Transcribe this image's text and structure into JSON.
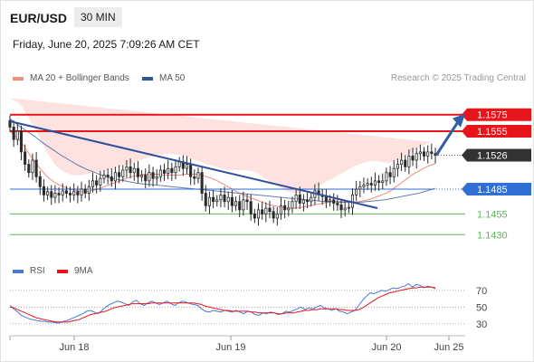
{
  "header": {
    "symbol": "EUR/USD",
    "interval": "30 MIN",
    "datetime": "Friday, June 20, 2025 7:09:26 AM CET"
  },
  "legend": {
    "ma20_bb_label": "MA 20 + Bollinger Bands",
    "ma50_label": "MA 50",
    "copyright": "Research © 2025 Trading Central"
  },
  "rsi_legend": {
    "rsi_label": "RSI",
    "ma9_label": "9MA"
  },
  "colors": {
    "ma20": "#f28b82",
    "bollinger_fill": "#fde2e0",
    "ma50": "#2f5597",
    "resistance": "#e8141b",
    "support": "#2f6fd6",
    "target_support": "#5cb85c",
    "current_price": "#333333",
    "candle": "#2b2b2b",
    "trendline": "#2f4f9a",
    "arrow": "#2f5fa7",
    "rsi": "#4a78d4",
    "rsi_ma": "#e8141b"
  },
  "chart_data": [
    {
      "type": "candlestick",
      "title": "",
      "xlabel": "",
      "ylabel": "",
      "x_ticks": [
        "Jun 18",
        "Jun 19",
        "Jun 20",
        "Jun 25"
      ],
      "ylim": [
        1.1415,
        1.159
      ],
      "price_levels": [
        {
          "label": "1.1575",
          "value": 1.1575,
          "kind": "resistance"
        },
        {
          "label": "1.1555",
          "value": 1.1555,
          "kind": "resistance"
        },
        {
          "label": "1.1526",
          "value": 1.1526,
          "kind": "current"
        },
        {
          "label": "1.1485",
          "value": 1.1485,
          "kind": "pivot"
        },
        {
          "label": "1.1455",
          "value": 1.1455,
          "kind": "support"
        },
        {
          "label": "1.1430",
          "value": 1.143,
          "kind": "support"
        }
      ],
      "close_series": [
        1.156,
        1.1545,
        1.1555,
        1.153,
        1.1515,
        1.1505,
        1.152,
        1.15,
        1.1488,
        1.1478,
        1.1482,
        1.1475,
        1.148,
        1.1478,
        1.1483,
        1.148,
        1.1478,
        1.1482,
        1.1478,
        1.1485,
        1.148,
        1.1488,
        1.1495,
        1.149,
        1.1498,
        1.1502,
        1.15,
        1.1495,
        1.1505,
        1.15,
        1.1508,
        1.1512,
        1.1505,
        1.151,
        1.15,
        1.1502,
        1.1495,
        1.1505,
        1.1498,
        1.15,
        1.1508,
        1.1504,
        1.151,
        1.1505,
        1.1512,
        1.1518,
        1.151,
        1.1515,
        1.15,
        1.1498,
        1.1505,
        1.148,
        1.1465,
        1.1475,
        1.147,
        1.1472,
        1.1478,
        1.147,
        1.1475,
        1.1465,
        1.147,
        1.146,
        1.1472,
        1.147,
        1.1455,
        1.145,
        1.146,
        1.1455,
        1.1462,
        1.1458,
        1.145,
        1.1455,
        1.1465,
        1.146,
        1.1462,
        1.147,
        1.1478,
        1.1468,
        1.1472,
        1.147,
        1.1475,
        1.1483,
        1.1478,
        1.1476,
        1.147,
        1.1472,
        1.1468,
        1.1466,
        1.146,
        1.1462,
        1.1463,
        1.1478,
        1.1485,
        1.1488,
        1.149,
        1.1492,
        1.149,
        1.1495,
        1.1493,
        1.1495,
        1.1505,
        1.15,
        1.151,
        1.1515,
        1.152,
        1.1512,
        1.1525,
        1.152,
        1.1528,
        1.153,
        1.1525,
        1.153,
        1.1528,
        1.1526
      ],
      "ma20_series": [
        1.1555,
        1.155,
        1.1545,
        1.1538,
        1.153,
        1.1522,
        1.1515,
        1.1508,
        1.1502,
        1.1497,
        1.1493,
        1.149,
        1.1488,
        1.1486,
        1.1484,
        1.1483,
        1.1482,
        1.1482,
        1.1483,
        1.1484,
        1.1486,
        1.1488,
        1.149,
        1.1492,
        1.1494,
        1.1496,
        1.1498,
        1.15,
        1.1501,
        1.1502,
        1.1503,
        1.1503,
        1.1503,
        1.1503,
        1.1502,
        1.1502,
        1.1502,
        1.1502,
        1.1502,
        1.1503,
        1.1503,
        1.1503,
        1.1503,
        1.1502,
        1.15,
        1.1498,
        1.1496,
        1.1493,
        1.149,
        1.1487,
        1.1484,
        1.1481,
        1.1478,
        1.1476,
        1.1474,
        1.1472,
        1.147,
        1.1468,
        1.1466,
        1.1465,
        1.1464,
        1.1463,
        1.1462,
        1.1462,
        1.1462,
        1.1463,
        1.1464,
        1.1465,
        1.1466,
        1.1467,
        1.1468,
        1.1469,
        1.147,
        1.147,
        1.147,
        1.147,
        1.147,
        1.147,
        1.147,
        1.1471,
        1.1472,
        1.1474,
        1.1476,
        1.1478,
        1.148,
        1.1483,
        1.1487,
        1.1491,
        1.1495,
        1.1499,
        1.1503,
        1.1506,
        1.1509,
        1.1512,
        1.1514,
        1.1516
      ],
      "bb_width_series": [
        0.004,
        0.0042,
        0.0044,
        0.0044,
        0.0043,
        0.0041,
        0.0038,
        0.0035,
        0.003,
        0.0026,
        0.0022,
        0.002,
        0.0018,
        0.0018,
        0.0018,
        0.0019,
        0.002,
        0.0021,
        0.0021,
        0.0021,
        0.002,
        0.0019,
        0.0018,
        0.0017,
        0.0017,
        0.0017,
        0.0016,
        0.0016,
        0.0017,
        0.0018,
        0.0019,
        0.002,
        0.0022,
        0.0024,
        0.0025,
        0.0026,
        0.0026,
        0.0025,
        0.0024,
        0.0022,
        0.002,
        0.0018,
        0.0016,
        0.0015,
        0.0015,
        0.0015,
        0.0016,
        0.0017,
        0.0019,
        0.0021,
        0.0024,
        0.0027,
        0.003,
        0.0032,
        0.0033,
        0.0033,
        0.0032,
        0.003,
        0.0028,
        0.0026,
        0.0024,
        0.0022,
        0.002,
        0.0019,
        0.0018,
        0.0018,
        0.0018,
        0.0019,
        0.002,
        0.0022,
        0.0024,
        0.0026,
        0.0028,
        0.0031,
        0.0034,
        0.0037,
        0.004,
        0.0043,
        0.0045,
        0.0046,
        0.0046,
        0.0045,
        0.0043,
        0.004,
        0.0037,
        0.0034,
        0.0032,
        0.003,
        0.0029,
        0.0028,
        0.0028,
        0.0028,
        0.0028,
        0.0028,
        0.0028
      ],
      "ma50_series": [
        1.157,
        1.1562,
        1.1555,
        1.1548,
        1.154,
        1.1533,
        1.1526,
        1.152,
        1.1514,
        1.1509,
        1.1505,
        1.1501,
        1.1498,
        1.1496,
        1.1494,
        1.1492,
        1.1491,
        1.149,
        1.1489,
        1.1488,
        1.1487,
        1.1486,
        1.1485,
        1.1484,
        1.1483,
        1.1482,
        1.1481,
        1.148,
        1.1479,
        1.1478,
        1.1477,
        1.1476,
        1.1475,
        1.1474,
        1.1473,
        1.1472,
        1.1471,
        1.147,
        1.147,
        1.1469,
        1.1469,
        1.1469,
        1.147,
        1.1471,
        1.1472,
        1.1474,
        1.1476,
        1.1478,
        1.148,
        1.1483,
        1.1486
      ],
      "trendline": {
        "start": 1.1567,
        "end": 1.1462
      },
      "projection_arrow": {
        "from": 1.1526,
        "to": 1.1575
      }
    },
    {
      "type": "line",
      "title": "",
      "series_names": [
        "RSI",
        "9MA"
      ],
      "y_ticks": [
        "70",
        "50",
        "30"
      ],
      "ylim": [
        20,
        85
      ],
      "rsi_series": [
        52,
        48,
        44,
        40,
        38,
        36,
        35,
        34,
        33,
        33,
        32,
        32,
        31,
        31,
        33,
        34,
        36,
        38,
        40,
        42,
        45,
        46,
        44,
        42,
        46,
        50,
        53,
        55,
        57,
        56,
        54,
        52,
        56,
        58,
        54,
        52,
        55,
        57,
        55,
        53,
        55,
        57,
        54,
        52,
        55,
        57,
        56,
        54,
        53,
        52,
        48,
        45,
        44,
        46,
        45,
        44,
        46,
        45,
        44,
        46,
        44,
        42,
        45,
        44,
        41,
        40,
        43,
        42,
        44,
        43,
        41,
        42,
        45,
        44,
        46,
        48,
        50,
        47,
        49,
        48,
        50,
        52,
        49,
        48,
        46,
        48,
        45,
        44,
        42,
        44,
        46,
        52,
        58,
        63,
        67,
        66,
        68,
        70,
        69,
        71,
        73,
        72,
        74,
        75,
        78,
        74,
        77,
        76,
        73,
        75,
        74,
        72
      ],
      "ma9_series": [
        50,
        49,
        47,
        45,
        43,
        41,
        39,
        37,
        36,
        35,
        34,
        33,
        32,
        32,
        32,
        32,
        33,
        34,
        35,
        37,
        39,
        41,
        42,
        43,
        44,
        45,
        47,
        49,
        50,
        51,
        52,
        53,
        54,
        54,
        54,
        54,
        54,
        55,
        55,
        55,
        55,
        55,
        55,
        55,
        55,
        55,
        55,
        55,
        55,
        54,
        53,
        51,
        50,
        49,
        48,
        47,
        46,
        46,
        45,
        45,
        45,
        45,
        45,
        44,
        44,
        43,
        43,
        43,
        43,
        43,
        42,
        42,
        43,
        43,
        43,
        44,
        45,
        46,
        46,
        47,
        47,
        48,
        48,
        48,
        48,
        48,
        47,
        47,
        46,
        46,
        46,
        47,
        49,
        52,
        55,
        58,
        61,
        63,
        65,
        67,
        68,
        69,
        70,
        71,
        72,
        73,
        73,
        74,
        74,
        74,
        74,
        73
      ]
    }
  ]
}
